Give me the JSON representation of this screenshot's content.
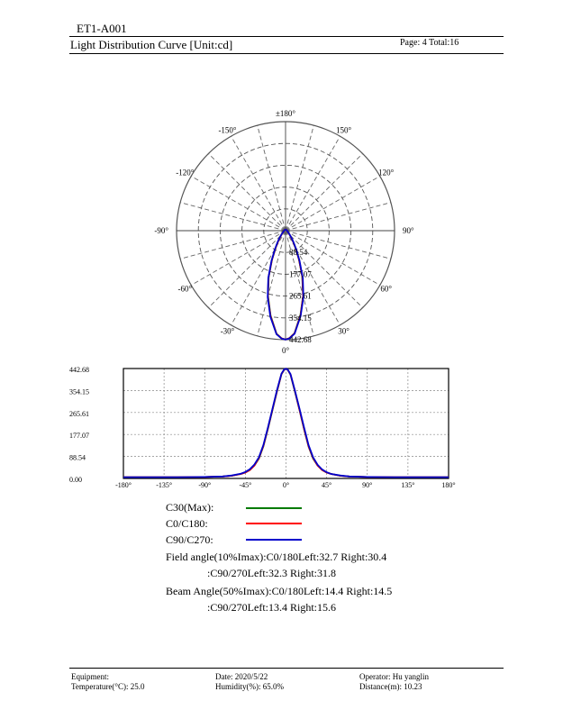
{
  "header": {
    "doc_id": "ET1-A001",
    "title": "Light Distribution Curve [Unit:cd]",
    "page": "Page: 4  Total:16"
  },
  "polar": {
    "angle_labels": [
      "±180°",
      "150°",
      "120°",
      "90°",
      "60°",
      "30°",
      "0°",
      "-30°",
      "-60°",
      "-90°",
      "-120°",
      "-150°"
    ],
    "radial_labels": [
      "88.54",
      "177.07",
      "265.61",
      "354.15",
      "442.68"
    ]
  },
  "chart_data": [
    {
      "type": "line",
      "title": "",
      "xlabel": "",
      "ylabel": "",
      "xlim": [
        -180,
        180
      ],
      "ylim": [
        0,
        442.68
      ],
      "x_tick_labels": [
        "-180°",
        "-135°",
        "-90°",
        "-45°",
        "0°",
        "45°",
        "90°",
        "135°",
        "180°"
      ],
      "y_tick_labels": [
        "442.68",
        "354.15",
        "265.61",
        "177.07",
        "88.54",
        "0.00"
      ],
      "grid": true,
      "x": [
        -180,
        -120,
        -90,
        -70,
        -60,
        -50,
        -45,
        -40,
        -35,
        -30,
        -25,
        -20,
        -15,
        -10,
        -5,
        -2,
        0,
        2,
        5,
        10,
        15,
        20,
        25,
        30,
        35,
        40,
        45,
        50,
        60,
        70,
        90,
        120,
        180
      ],
      "series": [
        {
          "name": "C30(Max)",
          "color": "#007a00",
          "values": [
            5,
            5,
            6,
            8,
            11,
            18,
            24,
            34,
            52,
            80,
            130,
            200,
            275,
            350,
            420,
            438,
            442,
            437,
            418,
            348,
            275,
            198,
            128,
            80,
            52,
            34,
            24,
            18,
            11,
            8,
            6,
            5,
            5
          ]
        },
        {
          "name": "C0/C180",
          "color": "#ff0000",
          "values": [
            5,
            5,
            6,
            8,
            11,
            18,
            24,
            34,
            52,
            82,
            132,
            202,
            278,
            352,
            421,
            438,
            442,
            437,
            419,
            350,
            276,
            200,
            130,
            82,
            52,
            34,
            24,
            18,
            11,
            8,
            6,
            5,
            5
          ]
        },
        {
          "name": "C90/C270",
          "color": "#0000cc",
          "values": [
            5,
            5,
            6,
            8,
            12,
            19,
            26,
            37,
            56,
            85,
            135,
            205,
            280,
            355,
            422,
            439,
            442,
            438,
            420,
            352,
            280,
            205,
            134,
            85,
            55,
            36,
            25,
            18,
            12,
            8,
            6,
            5,
            5
          ]
        }
      ]
    }
  ],
  "legend": [
    {
      "label": "C30(Max):",
      "color": "#007a00"
    },
    {
      "label": "C0/C180:",
      "color": "#ff0000"
    },
    {
      "label": "C90/C270:",
      "color": "#0000cc"
    }
  ],
  "angles": {
    "field_1": "Field angle(10%Imax):C0/180Left:32.7 Right:30.4",
    "field_2": ":C90/270Left:32.3 Right:31.8",
    "beam_1": "Beam Angle(50%Imax):C0/180Left:14.4 Right:14.5",
    "beam_2": ":C90/270Left:13.4 Right:15.6"
  },
  "footer": {
    "equipment": "Equipment:",
    "temperature": "Temperature(°C): 25.0",
    "date": "Date: 2020/5/22",
    "humidity": "Humidity(%): 65.0%",
    "operator": "Operator: Hu yanglin",
    "distance": "Distance(m): 10.23"
  }
}
